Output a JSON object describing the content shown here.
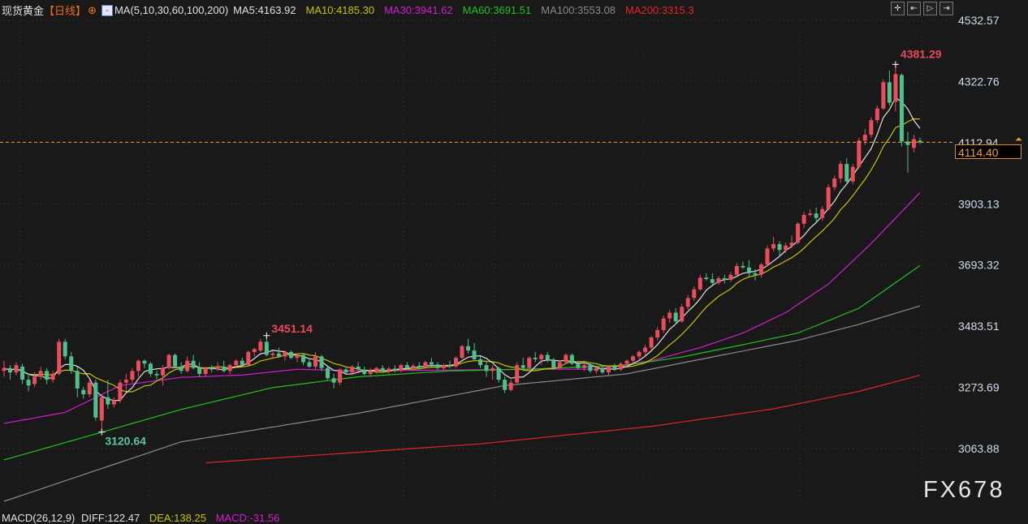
{
  "header": {
    "title": "现货黄金",
    "period": "【日线】",
    "ma_label": "MA(5,10,30,60,100,200)",
    "ma5": "MA5:4163.92",
    "ma10": "MA10:4185.30",
    "ma30": "MA30:3941.62",
    "ma60": "MA60:3691.51",
    "ma100": "MA100:3553.08",
    "ma200": "MA200:3315.3"
  },
  "toolbar": {
    "icons": [
      "crosshair-icon",
      "step-back-icon",
      "play-icon",
      "exit-icon"
    ],
    "glyphs": [
      "✛",
      "⇤",
      "▷",
      "⇥"
    ]
  },
  "colors": {
    "up": "#eb4d5c",
    "down": "#4fbf8c",
    "ma5": "#e0e0e0",
    "ma10": "#c8c400",
    "ma30": "#d21ed2",
    "ma60": "#1fc21f",
    "ma100": "#8a8a8a",
    "ma200": "#e02626",
    "last_price": "#e8a030"
  },
  "last_price": {
    "value": "4114.40",
    "hidden_tick": "4112.94"
  },
  "annotations": {
    "high": "4381.29",
    "mid_high": "3451.14",
    "low": "3120.64"
  },
  "macd": {
    "label": "MACD(26,12,9)",
    "diff": "DIFF:122.47",
    "dea": "DEA:138.25",
    "macd": "MACD:-31.56"
  },
  "watermark": "FX678",
  "chart_data": {
    "type": "candlestick",
    "ylim": [
      3063.88,
      4532.57
    ],
    "ytick_labels": [
      "4532.57",
      "4322.76",
      "4112.94",
      "3903.13",
      "3693.32",
      "3483.51",
      "3273.69",
      "3063.88"
    ],
    "grid": true,
    "ohlc": [
      [
        3330,
        3365,
        3310,
        3340
      ],
      [
        3340,
        3350,
        3300,
        3325
      ],
      [
        3325,
        3360,
        3315,
        3350
      ],
      [
        3345,
        3355,
        3285,
        3300
      ],
      [
        3300,
        3320,
        3260,
        3280
      ],
      [
        3285,
        3325,
        3275,
        3310
      ],
      [
        3310,
        3345,
        3300,
        3330
      ],
      [
        3330,
        3340,
        3285,
        3300
      ],
      [
        3300,
        3330,
        3290,
        3320
      ],
      [
        3320,
        3440,
        3315,
        3430
      ],
      [
        3430,
        3440,
        3370,
        3380
      ],
      [
        3380,
        3395,
        3320,
        3330
      ],
      [
        3330,
        3345,
        3240,
        3270
      ],
      [
        3265,
        3275,
        3235,
        3250
      ],
      [
        3250,
        3300,
        3240,
        3290
      ],
      [
        3290,
        3300,
        3160,
        3170
      ],
      [
        3160,
        3245,
        3120.64,
        3240
      ],
      [
        3240,
        3300,
        3200,
        3215
      ],
      [
        3215,
        3240,
        3205,
        3230
      ],
      [
        3230,
        3300,
        3220,
        3290
      ],
      [
        3290,
        3320,
        3260,
        3300
      ],
      [
        3300,
        3340,
        3290,
        3330
      ],
      [
        3330,
        3370,
        3310,
        3365
      ],
      [
        3365,
        3370,
        3340,
        3355
      ],
      [
        3355,
        3360,
        3310,
        3320
      ],
      [
        3320,
        3330,
        3300,
        3315
      ],
      [
        3315,
        3350,
        3280,
        3340
      ],
      [
        3340,
        3390,
        3335,
        3385
      ],
      [
        3385,
        3390,
        3340,
        3345
      ],
      [
        3345,
        3360,
        3320,
        3330
      ],
      [
        3330,
        3380,
        3325,
        3365
      ],
      [
        3365,
        3385,
        3335,
        3340
      ],
      [
        3340,
        3360,
        3310,
        3320
      ],
      [
        3320,
        3345,
        3310,
        3340
      ],
      [
        3340,
        3350,
        3325,
        3335
      ],
      [
        3335,
        3360,
        3330,
        3345
      ],
      [
        3345,
        3365,
        3325,
        3330
      ],
      [
        3330,
        3355,
        3320,
        3350
      ],
      [
        3350,
        3370,
        3340,
        3365
      ],
      [
        3365,
        3375,
        3345,
        3350
      ],
      [
        3350,
        3400,
        3345,
        3395
      ],
      [
        3395,
        3410,
        3380,
        3405
      ],
      [
        3400,
        3440,
        3395,
        3430
      ],
      [
        3430,
        3451.14,
        3380,
        3385
      ],
      [
        3385,
        3400,
        3370,
        3390
      ],
      [
        3390,
        3410,
        3375,
        3380
      ],
      [
        3380,
        3400,
        3365,
        3395
      ],
      [
        3395,
        3400,
        3370,
        3375
      ],
      [
        3375,
        3390,
        3360,
        3385
      ],
      [
        3385,
        3390,
        3350,
        3360
      ],
      [
        3360,
        3370,
        3340,
        3345
      ],
      [
        3345,
        3395,
        3335,
        3380
      ],
      [
        3380,
        3385,
        3330,
        3340
      ],
      [
        3340,
        3345,
        3300,
        3305
      ],
      [
        3305,
        3320,
        3270,
        3290
      ],
      [
        3290,
        3340,
        3280,
        3335
      ],
      [
        3335,
        3345,
        3320,
        3325
      ],
      [
        3325,
        3350,
        3315,
        3345
      ],
      [
        3345,
        3360,
        3330,
        3335
      ],
      [
        3335,
        3345,
        3315,
        3320
      ],
      [
        3320,
        3340,
        3310,
        3330
      ],
      [
        3330,
        3345,
        3320,
        3340
      ],
      [
        3340,
        3350,
        3325,
        3330
      ],
      [
        3330,
        3345,
        3320,
        3338
      ],
      [
        3338,
        3350,
        3325,
        3332
      ],
      [
        3332,
        3355,
        3325,
        3350
      ],
      [
        3350,
        3360,
        3335,
        3340
      ],
      [
        3340,
        3355,
        3330,
        3348
      ],
      [
        3348,
        3360,
        3335,
        3342
      ],
      [
        3342,
        3365,
        3338,
        3360
      ],
      [
        3360,
        3375,
        3345,
        3352
      ],
      [
        3352,
        3360,
        3335,
        3340
      ],
      [
        3340,
        3355,
        3330,
        3350
      ],
      [
        3350,
        3365,
        3340,
        3345
      ],
      [
        3345,
        3380,
        3340,
        3375
      ],
      [
        3375,
        3420,
        3370,
        3415
      ],
      [
        3415,
        3440,
        3390,
        3400
      ],
      [
        3400,
        3425,
        3365,
        3370
      ],
      [
        3370,
        3380,
        3340,
        3350
      ],
      [
        3350,
        3365,
        3310,
        3330
      ],
      [
        3330,
        3350,
        3300,
        3340
      ],
      [
        3340,
        3345,
        3290,
        3300
      ],
      [
        3300,
        3310,
        3255,
        3265
      ],
      [
        3265,
        3300,
        3260,
        3290
      ],
      [
        3290,
        3360,
        3285,
        3350
      ],
      [
        3350,
        3375,
        3330,
        3340
      ],
      [
        3340,
        3380,
        3335,
        3375
      ],
      [
        3375,
        3395,
        3360,
        3370
      ],
      [
        3370,
        3390,
        3350,
        3385
      ],
      [
        3385,
        3395,
        3360,
        3365
      ],
      [
        3365,
        3375,
        3335,
        3340
      ],
      [
        3340,
        3365,
        3335,
        3360
      ],
      [
        3360,
        3390,
        3355,
        3385
      ],
      [
        3385,
        3390,
        3350,
        3355
      ],
      [
        3355,
        3365,
        3335,
        3340
      ],
      [
        3340,
        3355,
        3330,
        3350
      ],
      [
        3350,
        3360,
        3325,
        3330
      ],
      [
        3330,
        3345,
        3320,
        3340
      ],
      [
        3340,
        3350,
        3320,
        3325
      ],
      [
        3325,
        3350,
        3315,
        3345
      ],
      [
        3345,
        3355,
        3330,
        3335
      ],
      [
        3335,
        3360,
        3330,
        3355
      ],
      [
        3355,
        3370,
        3345,
        3365
      ],
      [
        3365,
        3385,
        3355,
        3380
      ],
      [
        3380,
        3400,
        3370,
        3395
      ],
      [
        3395,
        3420,
        3385,
        3410
      ],
      [
        3410,
        3450,
        3400,
        3445
      ],
      [
        3445,
        3480,
        3435,
        3470
      ],
      [
        3470,
        3520,
        3460,
        3510
      ],
      [
        3510,
        3540,
        3495,
        3530
      ],
      [
        3530,
        3545,
        3490,
        3500
      ],
      [
        3500,
        3560,
        3495,
        3550
      ],
      [
        3550,
        3590,
        3540,
        3580
      ],
      [
        3580,
        3620,
        3570,
        3610
      ],
      [
        3610,
        3660,
        3605,
        3650
      ],
      [
        3650,
        3665,
        3640,
        3645
      ],
      [
        3645,
        3665,
        3620,
        3632
      ],
      [
        3632,
        3655,
        3625,
        3648
      ],
      [
        3648,
        3660,
        3630,
        3642
      ],
      [
        3642,
        3670,
        3635,
        3660
      ],
      [
        3660,
        3700,
        3655,
        3690
      ],
      [
        3690,
        3705,
        3680,
        3685
      ],
      [
        3685,
        3710,
        3650,
        3665
      ],
      [
        3665,
        3680,
        3640,
        3660
      ],
      [
        3660,
        3700,
        3650,
        3695
      ],
      [
        3695,
        3760,
        3690,
        3750
      ],
      [
        3750,
        3790,
        3740,
        3765
      ],
      [
        3765,
        3775,
        3720,
        3745
      ],
      [
        3745,
        3770,
        3735,
        3760
      ],
      [
        3760,
        3795,
        3750,
        3770
      ],
      [
        3770,
        3840,
        3765,
        3835
      ],
      [
        3835,
        3875,
        3820,
        3865
      ],
      [
        3865,
        3885,
        3860,
        3870
      ],
      [
        3870,
        3890,
        3840,
        3855
      ],
      [
        3855,
        3895,
        3845,
        3885
      ],
      [
        3885,
        3970,
        3880,
        3960
      ],
      [
        3960,
        4000,
        3950,
        3990
      ],
      [
        3990,
        4050,
        3975,
        4040
      ],
      [
        4040,
        4060,
        3970,
        3980
      ],
      [
        3980,
        4040,
        3970,
        4030
      ],
      [
        4030,
        4130,
        4025,
        4120
      ],
      [
        4120,
        4160,
        4105,
        4140
      ],
      [
        4140,
        4200,
        4130,
        4190
      ],
      [
        4190,
        4240,
        4180,
        4230
      ],
      [
        4230,
        4330,
        4225,
        4320
      ],
      [
        4320,
        4360,
        4240,
        4250
      ],
      [
        4253,
        4381.29,
        4220,
        4348
      ],
      [
        4345,
        4350,
        4100,
        4117
      ],
      [
        4117,
        4150,
        4010,
        4105
      ],
      [
        4095,
        4140,
        4080,
        4125
      ],
      [
        4120,
        4130,
        4108,
        4114.4
      ]
    ],
    "ma_series": {
      "ma30": [
        [
          0,
          3150
        ],
        [
          10,
          3188
        ],
        [
          19,
          3280
        ],
        [
          29,
          3308
        ],
        [
          39,
          3316
        ],
        [
          48,
          3336
        ],
        [
          58,
          3330
        ],
        [
          87,
          3336
        ],
        [
          97,
          3336
        ],
        [
          106,
          3365
        ],
        [
          114,
          3410
        ],
        [
          121,
          3460
        ],
        [
          128,
          3530
        ],
        [
          135,
          3628
        ],
        [
          142,
          3767
        ],
        [
          150,
          3941.62
        ]
      ],
      "ma60": [
        [
          0,
          3025
        ],
        [
          16,
          3120
        ],
        [
          29,
          3198
        ],
        [
          44,
          3273
        ],
        [
          58,
          3310
        ],
        [
          73,
          3330
        ],
        [
          87,
          3337
        ],
        [
          102,
          3350
        ],
        [
          111,
          3378
        ],
        [
          121,
          3420
        ],
        [
          130,
          3460
        ],
        [
          140,
          3545
        ],
        [
          150,
          3691.51
        ]
      ],
      "ma100": [
        [
          0,
          2883
        ],
        [
          29,
          3087
        ],
        [
          58,
          3185
        ],
        [
          82,
          3280
        ],
        [
          102,
          3320
        ],
        [
          116,
          3378
        ],
        [
          130,
          3435
        ],
        [
          140,
          3490
        ],
        [
          150,
          3553.08
        ]
      ],
      "ma200": [
        [
          33,
          3015
        ],
        [
          78,
          3080
        ],
        [
          106,
          3140
        ],
        [
          126,
          3200
        ],
        [
          140,
          3260
        ],
        [
          150,
          3315.3
        ]
      ]
    }
  }
}
